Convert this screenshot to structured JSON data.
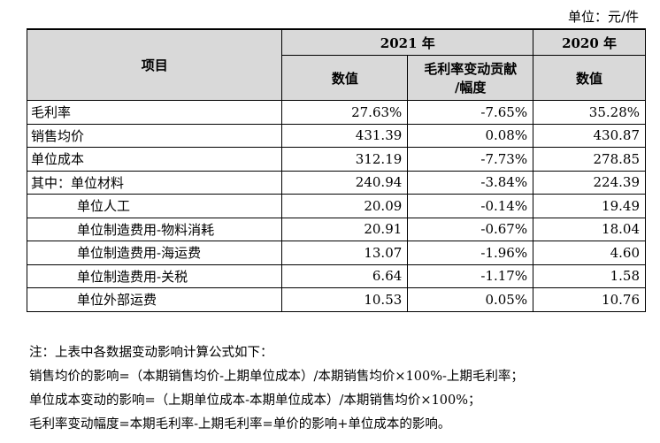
{
  "unit_label": "单位：元/件",
  "header": {
    "item": "项目",
    "year_2021": "2021 年",
    "year_2020": "2020 年",
    "value": "数值",
    "contribution_line1": "毛利率变动贡献",
    "contribution_line2": "/幅度",
    "value_2020": "数值"
  },
  "rows": [
    {
      "label": "毛利率",
      "v2021": "27.63%",
      "contrib": "-7.65%",
      "v2020": "35.28%"
    },
    {
      "label": "销售均价",
      "v2021": "431.39",
      "contrib": "0.08%",
      "v2020": "430.87"
    },
    {
      "label": "单位成本",
      "v2021": "312.19",
      "contrib": "-7.73%",
      "v2020": "278.85"
    },
    {
      "label": "其中：单位材料",
      "v2021": "240.94",
      "contrib": "-3.84%",
      "v2020": "224.39"
    },
    {
      "label": "单位人工",
      "v2021": "20.09",
      "contrib": "-0.14%",
      "v2020": "19.49"
    },
    {
      "label": "单位制造费用-物料消耗",
      "v2021": "20.91",
      "contrib": "-0.67%",
      "v2020": "18.04"
    },
    {
      "label": "单位制造费用-海运费",
      "v2021": "13.07",
      "contrib": "-1.96%",
      "v2020": "4.60"
    },
    {
      "label": "单位制造费用-关税",
      "v2021": "6.64",
      "contrib": "-1.17%",
      "v2020": "1.58"
    },
    {
      "label": "单位外部运费",
      "v2021": "10.53",
      "contrib": "0.05%",
      "v2020": "10.76"
    }
  ],
  "notes": [
    "注：上表中各数据变动影响计算公式如下：",
    "销售均价的影响=（本期销售均价-上期单位成本）/本期销售均价×100%-上期毛利率；",
    "单位成本变动的影响=（上期单位成本-本期单位成本）/本期销售均价×100%；",
    "毛利率变动幅度=本期毛利率-上期毛利率=单价的影响+单位成本的影响。"
  ]
}
